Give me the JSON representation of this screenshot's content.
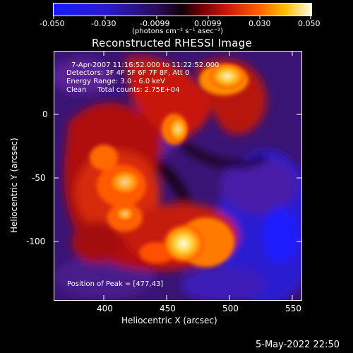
{
  "colorbar": {
    "tick_labels": [
      "-0.050",
      "-0.030",
      "-0.0099",
      "0.0099",
      "0.030",
      "0.050"
    ],
    "unit_label": "(photons cm⁻² s⁻¹ asec⁻²)"
  },
  "plot": {
    "title": "Reconstructed RHESSI Image",
    "x_label": "Heliocentric X (arcsec)",
    "y_label": "Heliocentric Y (arcsec)",
    "x_ticks": [
      "400",
      "450",
      "500",
      "550"
    ],
    "y_ticks": [
      "0",
      "-50",
      "-100"
    ],
    "annotations": {
      "time": "7-Apr-2007 11:16:52.000 to 11:22:52.000",
      "detectors": "Detectors: 3F 4F 5F 6F 7F 8F, Att 0",
      "energy": "Energy Range: 3.0 - 6.0 keV",
      "clean": "Clean     Total counts: 2.75E+04",
      "peak": "Position of Peak = [477,43]"
    }
  },
  "footer": {
    "date": "5-May-2022 22:50"
  },
  "colors": {
    "cb_low": "#1010ff",
    "cb_mid": "#101010",
    "cb_red": "#d11",
    "cb_orange": "#ff8a00",
    "cb_high": "#fff4b0"
  }
}
